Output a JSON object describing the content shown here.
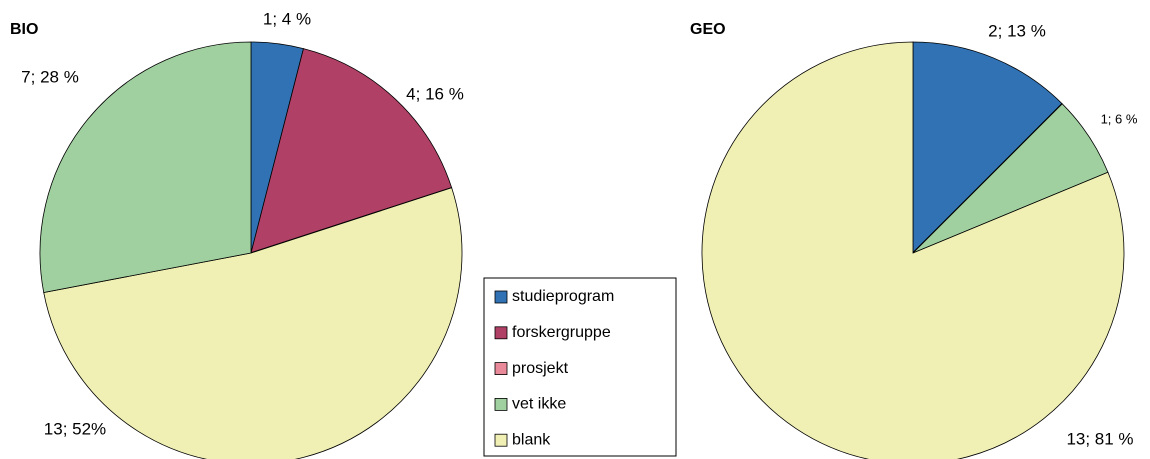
{
  "chart_data": [
    {
      "type": "pie",
      "title": "BIO",
      "categories": [
        "studieprogram",
        "forskergruppe",
        "prosjekt",
        "blank",
        "vet ikke"
      ],
      "values": [
        1,
        4,
        0,
        13,
        7
      ],
      "value_labels": [
        "1; 4 %",
        "4; 16 %",
        null,
        "13; 52%",
        "7; 28 %"
      ],
      "colors": [
        "#3072b3",
        "#b04066",
        "#e88a9a",
        "#f0f0b4",
        "#a0d0a0"
      ]
    },
    {
      "type": "pie",
      "title": "GEO",
      "categories": [
        "studieprogram",
        "forskergruppe",
        "prosjekt",
        "vet ikke",
        "blank"
      ],
      "values": [
        2,
        0,
        0,
        1,
        13
      ],
      "value_labels": [
        "2; 13 %",
        null,
        null,
        "1; 6 %",
        "13; 81 %"
      ],
      "colors": [
        "#3072b3",
        "#b04066",
        "#e88a9a",
        "#a0d0a0",
        "#f0f0b4"
      ]
    }
  ]
}
